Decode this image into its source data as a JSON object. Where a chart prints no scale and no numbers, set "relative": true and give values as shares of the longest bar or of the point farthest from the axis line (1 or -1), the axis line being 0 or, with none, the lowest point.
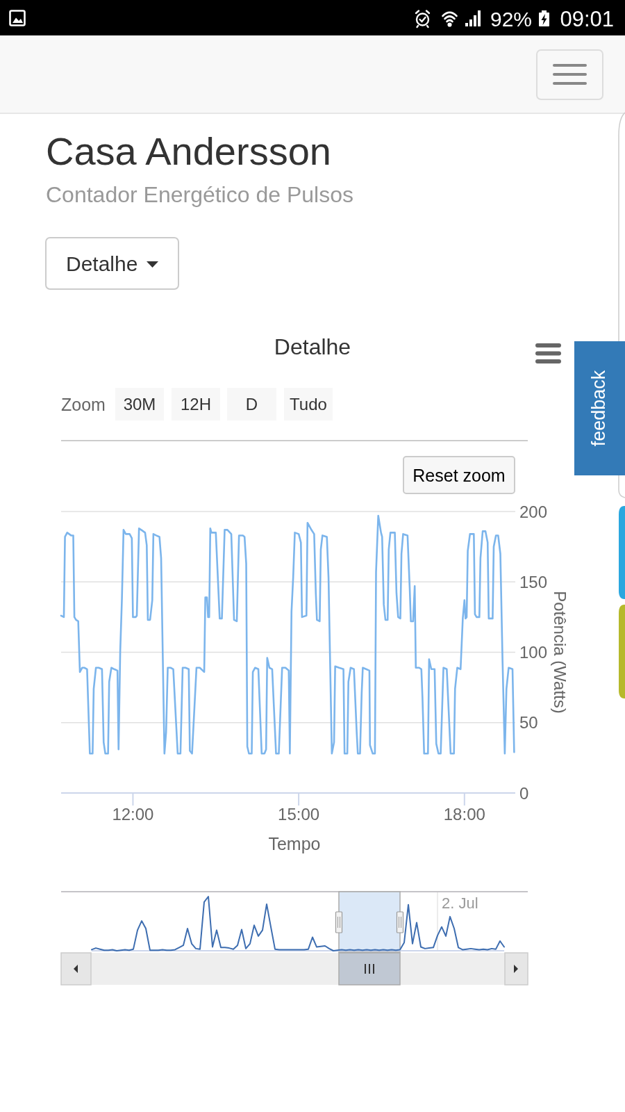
{
  "chart_data": [
    {
      "type": "line",
      "title": "Detalhe",
      "xlabel": "Tempo",
      "ylabel": "Potência (Watts)",
      "x": [
        10.7,
        10.75,
        10.77,
        10.81,
        10.88,
        10.92,
        10.94,
        10.97,
        11.01,
        11.04,
        11.08,
        11.12,
        11.17,
        11.22,
        11.27,
        11.29,
        11.33,
        11.38,
        11.44,
        11.47,
        11.5,
        11.55,
        11.57,
        11.61,
        11.66,
        11.72,
        11.74,
        11.77,
        11.8,
        11.83,
        11.87,
        11.94,
        11.98,
        12.0,
        12.05,
        12.07,
        12.11,
        12.15,
        12.22,
        12.25,
        12.27,
        12.31,
        12.35,
        12.37,
        12.42,
        12.48,
        12.51,
        12.57,
        12.6,
        12.63,
        12.68,
        12.73,
        12.81,
        12.86,
        12.9,
        12.95,
        13.01,
        13.03,
        13.07,
        13.15,
        13.21,
        13.29,
        13.31,
        13.34,
        13.36,
        13.38,
        13.4,
        13.42,
        13.5,
        13.57,
        13.61,
        13.66,
        13.71,
        13.78,
        13.83,
        13.88,
        13.92,
        13.99,
        14.02,
        14.05,
        14.07,
        14.1,
        14.15,
        14.17,
        14.21,
        14.27,
        14.33,
        14.38,
        14.41,
        14.43,
        14.47,
        14.52,
        14.59,
        14.64,
        14.7,
        14.76,
        14.82,
        14.84,
        14.87,
        14.9,
        14.93,
        15.0,
        15.04,
        15.06,
        15.14,
        15.16,
        15.23,
        15.28,
        15.31,
        15.33,
        15.38,
        15.4,
        15.43,
        15.51,
        15.54,
        15.6,
        15.64,
        15.66,
        15.73,
        15.81,
        15.83,
        15.88,
        15.9,
        15.94,
        16.0,
        16.05,
        16.07,
        16.11,
        16.14,
        16.16,
        16.22,
        16.28,
        16.29,
        16.34,
        16.38,
        16.4,
        16.44,
        16.49,
        16.51,
        16.54,
        16.57,
        16.61,
        16.63,
        16.66,
        16.74,
        16.77,
        16.8,
        16.84,
        16.86,
        16.89,
        16.97,
        17.01,
        17.03,
        17.07,
        17.1,
        17.12,
        17.18,
        17.22,
        17.24,
        17.27,
        17.34,
        17.36,
        17.4,
        17.46,
        17.49,
        17.53,
        17.57,
        17.62,
        17.68,
        17.75,
        17.81,
        17.83,
        17.87,
        17.93,
        17.97,
        18.0,
        18.02,
        18.04,
        18.06,
        18.1,
        18.17,
        18.19,
        18.22,
        18.27,
        18.29,
        18.33,
        18.38,
        18.42,
        18.44,
        18.51,
        18.53,
        18.57,
        18.61,
        18.65,
        18.69,
        18.73,
        18.76,
        18.8,
        18.87,
        18.9
      ],
      "values": [
        126,
        125,
        182,
        185,
        183,
        183,
        125,
        123,
        122,
        86,
        89,
        89,
        88,
        28,
        28,
        74,
        89,
        89,
        88,
        36,
        28,
        28,
        79,
        89,
        88,
        87,
        31,
        101,
        137,
        187,
        184,
        184,
        181,
        125,
        125,
        126,
        188,
        187,
        185,
        176,
        123,
        123,
        137,
        184,
        183,
        182,
        167,
        28,
        43,
        89,
        89,
        88,
        28,
        28,
        89,
        89,
        88,
        30,
        28,
        89,
        89,
        86,
        139,
        139,
        125,
        125,
        188,
        185,
        185,
        124,
        124,
        187,
        187,
        184,
        123,
        122,
        183,
        183,
        182,
        163,
        33,
        28,
        28,
        86,
        89,
        88,
        28,
        28,
        31,
        96,
        89,
        88,
        28,
        28,
        89,
        89,
        87,
        28,
        129,
        153,
        185,
        184,
        178,
        125,
        126,
        192,
        187,
        184,
        142,
        123,
        122,
        173,
        183,
        182,
        153,
        28,
        36,
        90,
        89,
        88,
        28,
        28,
        79,
        89,
        88,
        43,
        28,
        28,
        71,
        89,
        88,
        87,
        34,
        28,
        28,
        157,
        197,
        185,
        182,
        134,
        123,
        123,
        173,
        185,
        185,
        142,
        125,
        124,
        170,
        184,
        183,
        145,
        122,
        122,
        147,
        89,
        89,
        88,
        68,
        28,
        28,
        95,
        88,
        88,
        35,
        28,
        28,
        89,
        88,
        28,
        28,
        74,
        89,
        88,
        124,
        137,
        124,
        125,
        172,
        184,
        184,
        127,
        125,
        125,
        167,
        186,
        186,
        178,
        124,
        124,
        175,
        183,
        183,
        170,
        93,
        28,
        74,
        89,
        88,
        29
      ],
      "color": "#7cb5ec",
      "xlim": [
        10.7,
        18.92
      ],
      "xticks": [
        {
          "value": 12,
          "label": "12:00"
        },
        {
          "value": 15,
          "label": "15:00"
        },
        {
          "value": 18,
          "label": "18:00"
        }
      ],
      "ylim": [
        0,
        200
      ],
      "yticks": [
        0,
        50,
        100,
        150,
        200
      ],
      "grid": "y",
      "annotations": [
        "Casa Andersson",
        "Contador Energético de Pulsos",
        "Detalhe",
        "Zoom",
        "30M",
        "12H",
        "D",
        "Tudo",
        "Reset zoom",
        "feedback",
        "92%",
        "09:01"
      ]
    },
    {
      "type": "line",
      "relative": true,
      "categories": [
        null,
        null,
        null,
        null,
        null,
        null,
        null,
        null,
        null,
        null,
        null,
        null,
        null,
        null,
        null,
        null,
        null,
        null,
        null,
        null,
        null,
        null,
        null,
        null,
        null,
        null,
        null,
        null,
        null,
        null,
        null,
        null,
        null,
        null,
        null,
        null,
        null,
        null,
        null,
        null,
        null,
        null,
        null,
        null,
        null,
        null,
        null,
        null,
        null,
        null,
        null,
        null,
        null,
        null,
        null,
        null,
        null,
        null,
        null,
        null,
        null,
        null,
        null,
        null,
        null,
        null,
        null,
        null,
        null,
        null,
        null,
        null,
        null,
        null,
        null,
        null,
        null,
        null,
        null,
        null,
        null,
        null,
        null,
        null,
        null,
        null,
        null,
        null,
        null,
        null,
        null,
        null,
        null,
        null,
        null,
        null,
        null,
        null,
        null,
        null
      ],
      "values": [
        0.02,
        0.05,
        0.03,
        0.01,
        0.01,
        0.02,
        0,
        0.01,
        0.02,
        0.01,
        0.03,
        0.38,
        0.55,
        0.41,
        0.01,
        0.01,
        0.01,
        0.02,
        0.01,
        0.01,
        0.02,
        0.06,
        0.1,
        0.41,
        0.13,
        0.04,
        0.03,
        0.9,
        1,
        0.07,
        0.38,
        0.06,
        0.06,
        0.05,
        0.03,
        0.1,
        0.39,
        0.04,
        0.13,
        0.47,
        0.27,
        0.38,
        0.86,
        0.44,
        0.03,
        0.02,
        0.02,
        0.02,
        0.02,
        0.02,
        0.02,
        0.02,
        0.03,
        0.25,
        0.07,
        0.08,
        0.09,
        0.04,
        0,
        0.01,
        0.02,
        0.01,
        0.02,
        0.01,
        0.02,
        0.01,
        0.02,
        0.01,
        0.02,
        0.01,
        0.02,
        0.01,
        0.02,
        0.01,
        0.02,
        0.15,
        0.85,
        0.13,
        0.52,
        0.07,
        0.04,
        0.05,
        0.06,
        0.28,
        0.44,
        0.27,
        0.63,
        0.41,
        0.06,
        0.02,
        0.03,
        0.04,
        0.03,
        0.02,
        0.03,
        0.02,
        0.04,
        0.03,
        0.18,
        0.07
      ],
      "color": "#3d6db0",
      "annotations": [
        "2. Jul"
      ]
    }
  ]
}
